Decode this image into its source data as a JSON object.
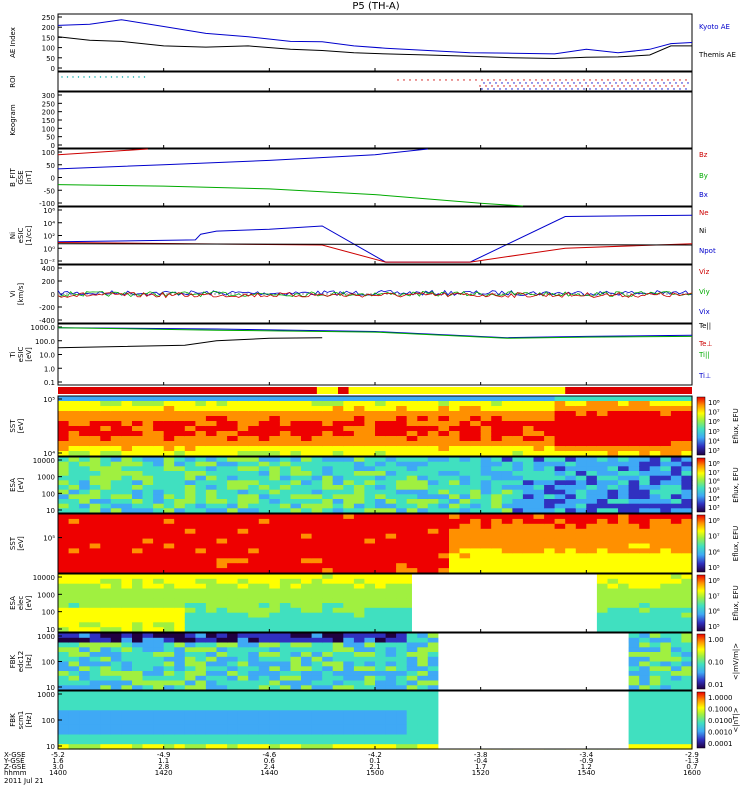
{
  "chart_data": {
    "type": "line",
    "title": "P5 (TH-A)",
    "date_label": "2011 Jul 21",
    "x_axis": {
      "row_labels": [
        "X-GSE",
        "Y-GSE",
        "Z-GSE",
        "hhmm"
      ],
      "ticks": [
        {
          "x": "-5.2",
          "y": "1.6",
          "z": "3.0",
          "hhmm": "1400"
        },
        {
          "x": "-4.9",
          "y": "1.1",
          "z": "2.8",
          "hhmm": "1420"
        },
        {
          "x": "-4.6",
          "y": "0.6",
          "z": "2.4",
          "hhmm": "1440"
        },
        {
          "x": "-4.2",
          "y": "0.1",
          "z": "2.1",
          "hhmm": "1500"
        },
        {
          "x": "-3.8",
          "y": "-0.4",
          "z": "1.7",
          "hhmm": "1520"
        },
        {
          "x": "-3.4",
          "y": "-0.9",
          "z": "1.2",
          "hhmm": "1540"
        },
        {
          "x": "-2.9",
          "y": "-1.3",
          "z": "0.7",
          "hhmm": "1600"
        }
      ],
      "range_minutes": [
        0,
        120
      ]
    },
    "panels": [
      {
        "id": "ae",
        "ylabel": [
          "AE Index"
        ],
        "yticks": [
          "250",
          "200",
          "150",
          "100",
          "50",
          "0"
        ],
        "ylim": [
          0,
          250
        ],
        "legend": [
          {
            "label": "Kyoto AE",
            "color": "#0000cc"
          },
          {
            "label": "Themis AE",
            "color": "#000000"
          }
        ],
        "series": [
          {
            "name": "Kyoto AE",
            "color": "#0000cc",
            "x": [
              0,
              6,
              12,
              20,
              28,
              36,
              44,
              50,
              56,
              62,
              70,
              78,
              86,
              94,
              100,
              106,
              112,
              116,
              120
            ],
            "values": [
              200,
              205,
              225,
              195,
              165,
              150,
              130,
              128,
              110,
              100,
              90,
              80,
              78,
              75,
              95,
              80,
              95,
              120,
              125
            ]
          },
          {
            "name": "Themis AE",
            "color": "#000000",
            "x": [
              0,
              6,
              12,
              20,
              28,
              36,
              44,
              50,
              56,
              62,
              70,
              78,
              86,
              94,
              100,
              106,
              112,
              116,
              120
            ],
            "values": [
              150,
              135,
              130,
              110,
              105,
              110,
              95,
              90,
              80,
              75,
              70,
              65,
              58,
              55,
              60,
              62,
              70,
              110,
              110
            ]
          }
        ]
      },
      {
        "id": "roi",
        "ylabel": [
          "ROI"
        ],
        "yticks": []
      },
      {
        "id": "keogram",
        "ylabel": [
          "Keogram"
        ],
        "yticks": [
          "300",
          "250",
          "200",
          "150",
          "100",
          "50",
          "0"
        ],
        "ylim": [
          0,
          300
        ]
      },
      {
        "id": "bfit",
        "ylabel": [
          "B_FIT",
          "GSE",
          "[nT]"
        ],
        "yticks": [
          "100",
          "50",
          "0",
          "-50",
          "-100"
        ],
        "ylim": [
          -100,
          100
        ],
        "legend": [
          {
            "label": "Bz",
            "color": "#cc0000"
          },
          {
            "label": "By",
            "color": "#00aa00"
          },
          {
            "label": "Bx",
            "color": "#0000cc"
          }
        ],
        "series": [
          {
            "name": "Bz",
            "color": "#cc0000",
            "x": [
              0,
              17
            ],
            "values": [
              80,
              100
            ]
          },
          {
            "name": "By",
            "color": "#00aa00",
            "x": [
              0,
              20,
              40,
              60,
              80,
              88
            ],
            "values": [
              -25,
              -30,
              -40,
              -60,
              -90,
              -100
            ]
          },
          {
            "name": "Bx",
            "color": "#0000cc",
            "x": [
              0,
              20,
              40,
              60,
              70
            ],
            "values": [
              30,
              45,
              60,
              80,
              100
            ]
          }
        ]
      },
      {
        "id": "ni",
        "ylabel": [
          "Ni",
          "eSIC",
          "[1/cc]"
        ],
        "yticks": [
          "10⁶",
          "10⁴",
          "10²",
          "10⁰",
          "10⁻²"
        ],
        "ylim": [
          -3,
          6
        ],
        "legend": [
          {
            "label": "Ne",
            "color": "#cc0000"
          },
          {
            "label": "Ni",
            "color": "#000000"
          },
          {
            "label": "Npot",
            "color": "#0000cc"
          }
        ],
        "series": [
          {
            "name": "Npot",
            "color": "#0000cc",
            "x": [
              0,
              26,
              27,
              30,
              40,
              50,
              62,
              78,
              96,
              120
            ],
            "values": [
              0.5,
              0.8,
              1.7,
              2.2,
              2.5,
              3.0,
              -2.7,
              -2.7,
              4.5,
              4.7
            ]
          },
          {
            "name": "Ne",
            "color": "#cc0000",
            "x": [
              0,
              50,
              62,
              78,
              96,
              120
            ],
            "values": [
              0.4,
              0,
              -2.7,
              -2.7,
              -0.5,
              0.2
            ]
          },
          {
            "name": "Ni",
            "color": "#000000",
            "x": [
              0,
              120
            ],
            "values": [
              0.2,
              0
            ]
          }
        ]
      },
      {
        "id": "vi",
        "ylabel": [
          "Vi",
          "[km/s]"
        ],
        "yticks": [
          "400",
          "200",
          "0",
          "-200",
          "-400"
        ],
        "ylim": [
          -500,
          500
        ],
        "legend": [
          {
            "label": "Viz",
            "color": "#cc0000"
          },
          {
            "label": "Viy",
            "color": "#00aa00"
          },
          {
            "label": "Vix",
            "color": "#0000cc"
          }
        ]
      },
      {
        "id": "ti",
        "ylabel": [
          "Ti",
          "eSIC",
          "[eV]"
        ],
        "yticks": [
          "1000.0",
          "100.0",
          "10.0",
          "1.0",
          "0.1"
        ],
        "ylim": [
          -1.3,
          3.6
        ],
        "legend": [
          {
            "label": "Te||",
            "color": "#000000"
          },
          {
            "label": "Te⊥",
            "color": "#cc0000"
          },
          {
            "label": "Ti||",
            "color": "#00aa00"
          },
          {
            "label": "Ti⊥",
            "color": "#0000cc"
          }
        ],
        "series": [
          {
            "name": "Ti⊥",
            "color": "#0000cc",
            "x": [
              0,
              30,
              60,
              85,
              100,
              120
            ],
            "values": [
              3.3,
              3.2,
              3.0,
              2.5,
              2.6,
              2.7
            ]
          },
          {
            "name": "Ti||",
            "color": "#00aa00",
            "x": [
              0,
              30,
              60,
              85,
              100,
              120
            ],
            "values": [
              3.3,
              3.1,
              2.95,
              2.45,
              2.55,
              2.6
            ]
          },
          {
            "name": "Te||",
            "color": "#000000",
            "x": [
              0,
              24,
              30,
              40,
              50
            ],
            "values": [
              1.7,
              1.9,
              2.25,
              2.45,
              2.5
            ]
          }
        ]
      },
      {
        "id": "mode",
        "ylabel": [],
        "yticks": []
      },
      {
        "id": "sst1",
        "ylabel": [
          "SST",
          "[eV]"
        ],
        "yticks": [
          "10⁵",
          "10⁴"
        ],
        "cbar_label": "Eflux, EFU",
        "cbar_ticks": [
          "10⁸",
          "10⁷",
          "10⁶",
          "10⁵",
          "10⁴",
          "10³"
        ]
      },
      {
        "id": "esa1",
        "ylabel": [
          "ESA",
          "[eV]"
        ],
        "yticks": [
          "10000",
          "1000",
          "100",
          "10"
        ],
        "cbar_label": "Eflux, EFU",
        "cbar_ticks": [
          "10⁸",
          "10⁷",
          "10⁶",
          "10⁵",
          "10⁴",
          "10³"
        ]
      },
      {
        "id": "sst2",
        "ylabel": [
          "SST",
          "[eV]"
        ],
        "yticks": [
          "10⁵"
        ],
        "cbar_label": "Eflux, EFU",
        "cbar_ticks": [
          "10⁸",
          "10⁷",
          "10⁶",
          "10⁵"
        ]
      },
      {
        "id": "esa2",
        "ylabel": [
          "ESA",
          "elec",
          "[eV]"
        ],
        "yticks": [
          "10000",
          "1000",
          "100",
          "10"
        ],
        "cbar_label": "Eflux, EFU",
        "cbar_ticks": [
          "10⁸",
          "10⁷",
          "10⁶",
          "10⁵"
        ]
      },
      {
        "id": "fbk1",
        "ylabel": [
          "FBK",
          "edc12",
          "[Hz]"
        ],
        "yticks": [
          "1000",
          "100",
          "10"
        ],
        "cbar_label": "<|mV/m|>",
        "cbar_ticks": [
          "1.00",
          "0.10",
          "0.01"
        ]
      },
      {
        "id": "fbk2",
        "ylabel": [
          "FBK",
          "scm1",
          "[Hz]"
        ],
        "yticks": [
          "1000",
          "100",
          "10"
        ],
        "cbar_label": "<|nT|>",
        "cbar_ticks": [
          "1.0000",
          "0.1000",
          "0.0100",
          "0.0010",
          "0.0001"
        ]
      }
    ]
  }
}
